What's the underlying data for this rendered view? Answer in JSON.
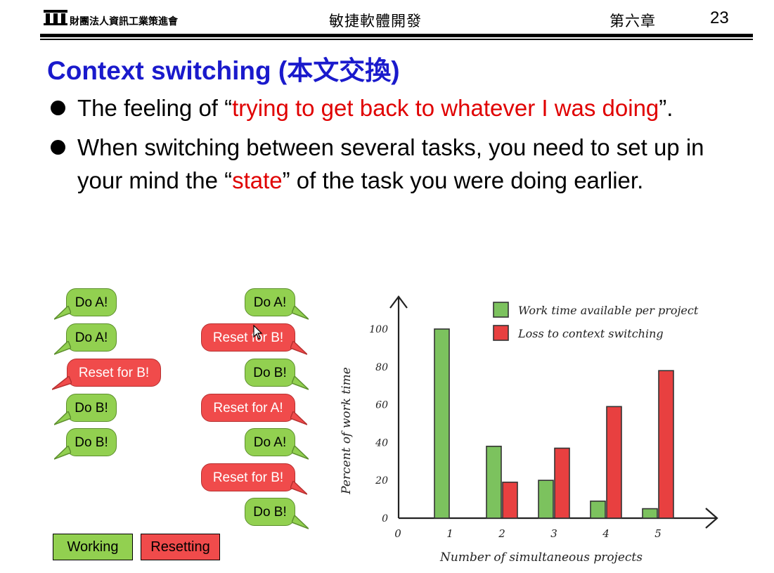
{
  "header": {
    "organization": "財團法人資訊工業策進會",
    "course": "敏捷軟體開發",
    "chapter": "第六章",
    "page_number": "23"
  },
  "title": {
    "text": "Context switching (",
    "cjk": "本文交換",
    "close": ")"
  },
  "bullets": [
    {
      "pre": "The feeling of “",
      "highlight": "trying to get back to whatever I was doing",
      "post": "”."
    },
    {
      "pre": "When switching between several tasks, you need to set up in your mind the “",
      "highlight": "state",
      "post": "” of the task you were doing earlier."
    }
  ],
  "bubbles": {
    "left_column": [
      {
        "label": "Do A!",
        "kind": "working"
      },
      {
        "label": "Do A!",
        "kind": "working"
      },
      {
        "label": "Reset for B!",
        "kind": "resetting"
      },
      {
        "label": "Do B!",
        "kind": "working"
      },
      {
        "label": "Do B!",
        "kind": "working"
      }
    ],
    "right_column": [
      {
        "label": "Do A!",
        "kind": "working"
      },
      {
        "label": "Reset for B!",
        "kind": "resetting"
      },
      {
        "label": "Do B!",
        "kind": "working"
      },
      {
        "label": "Reset for A!",
        "kind": "resetting"
      },
      {
        "label": "Do A!",
        "kind": "working"
      },
      {
        "label": "Reset for B!",
        "kind": "resetting"
      },
      {
        "label": "Do B!",
        "kind": "working"
      }
    ],
    "legend": {
      "working": "Working",
      "resetting": "Resetting"
    }
  },
  "colors": {
    "title": "#1a1acc",
    "highlight": "#e00000",
    "working": "#92d050",
    "resetting": "#f04b4b"
  },
  "chart_data": {
    "type": "bar",
    "x_ticks": [
      "0",
      "1",
      "2",
      "3",
      "4",
      "5"
    ],
    "categories": [
      "1",
      "2",
      "3",
      "4",
      "5"
    ],
    "series": [
      {
        "name": "Work time available per project",
        "color": "#7cc25e",
        "values": [
          100,
          38,
          20,
          9,
          5
        ]
      },
      {
        "name": "Loss to context switching",
        "color": "#e84040",
        "values": [
          0,
          19,
          37,
          59,
          78
        ]
      }
    ],
    "xlabel": "Number of simultaneous projects",
    "ylabel": "Percent of work time",
    "y_ticks": [
      0,
      20,
      40,
      60,
      80,
      100
    ],
    "ylim": [
      0,
      100
    ],
    "legend_position": "top-right",
    "grid": false
  }
}
